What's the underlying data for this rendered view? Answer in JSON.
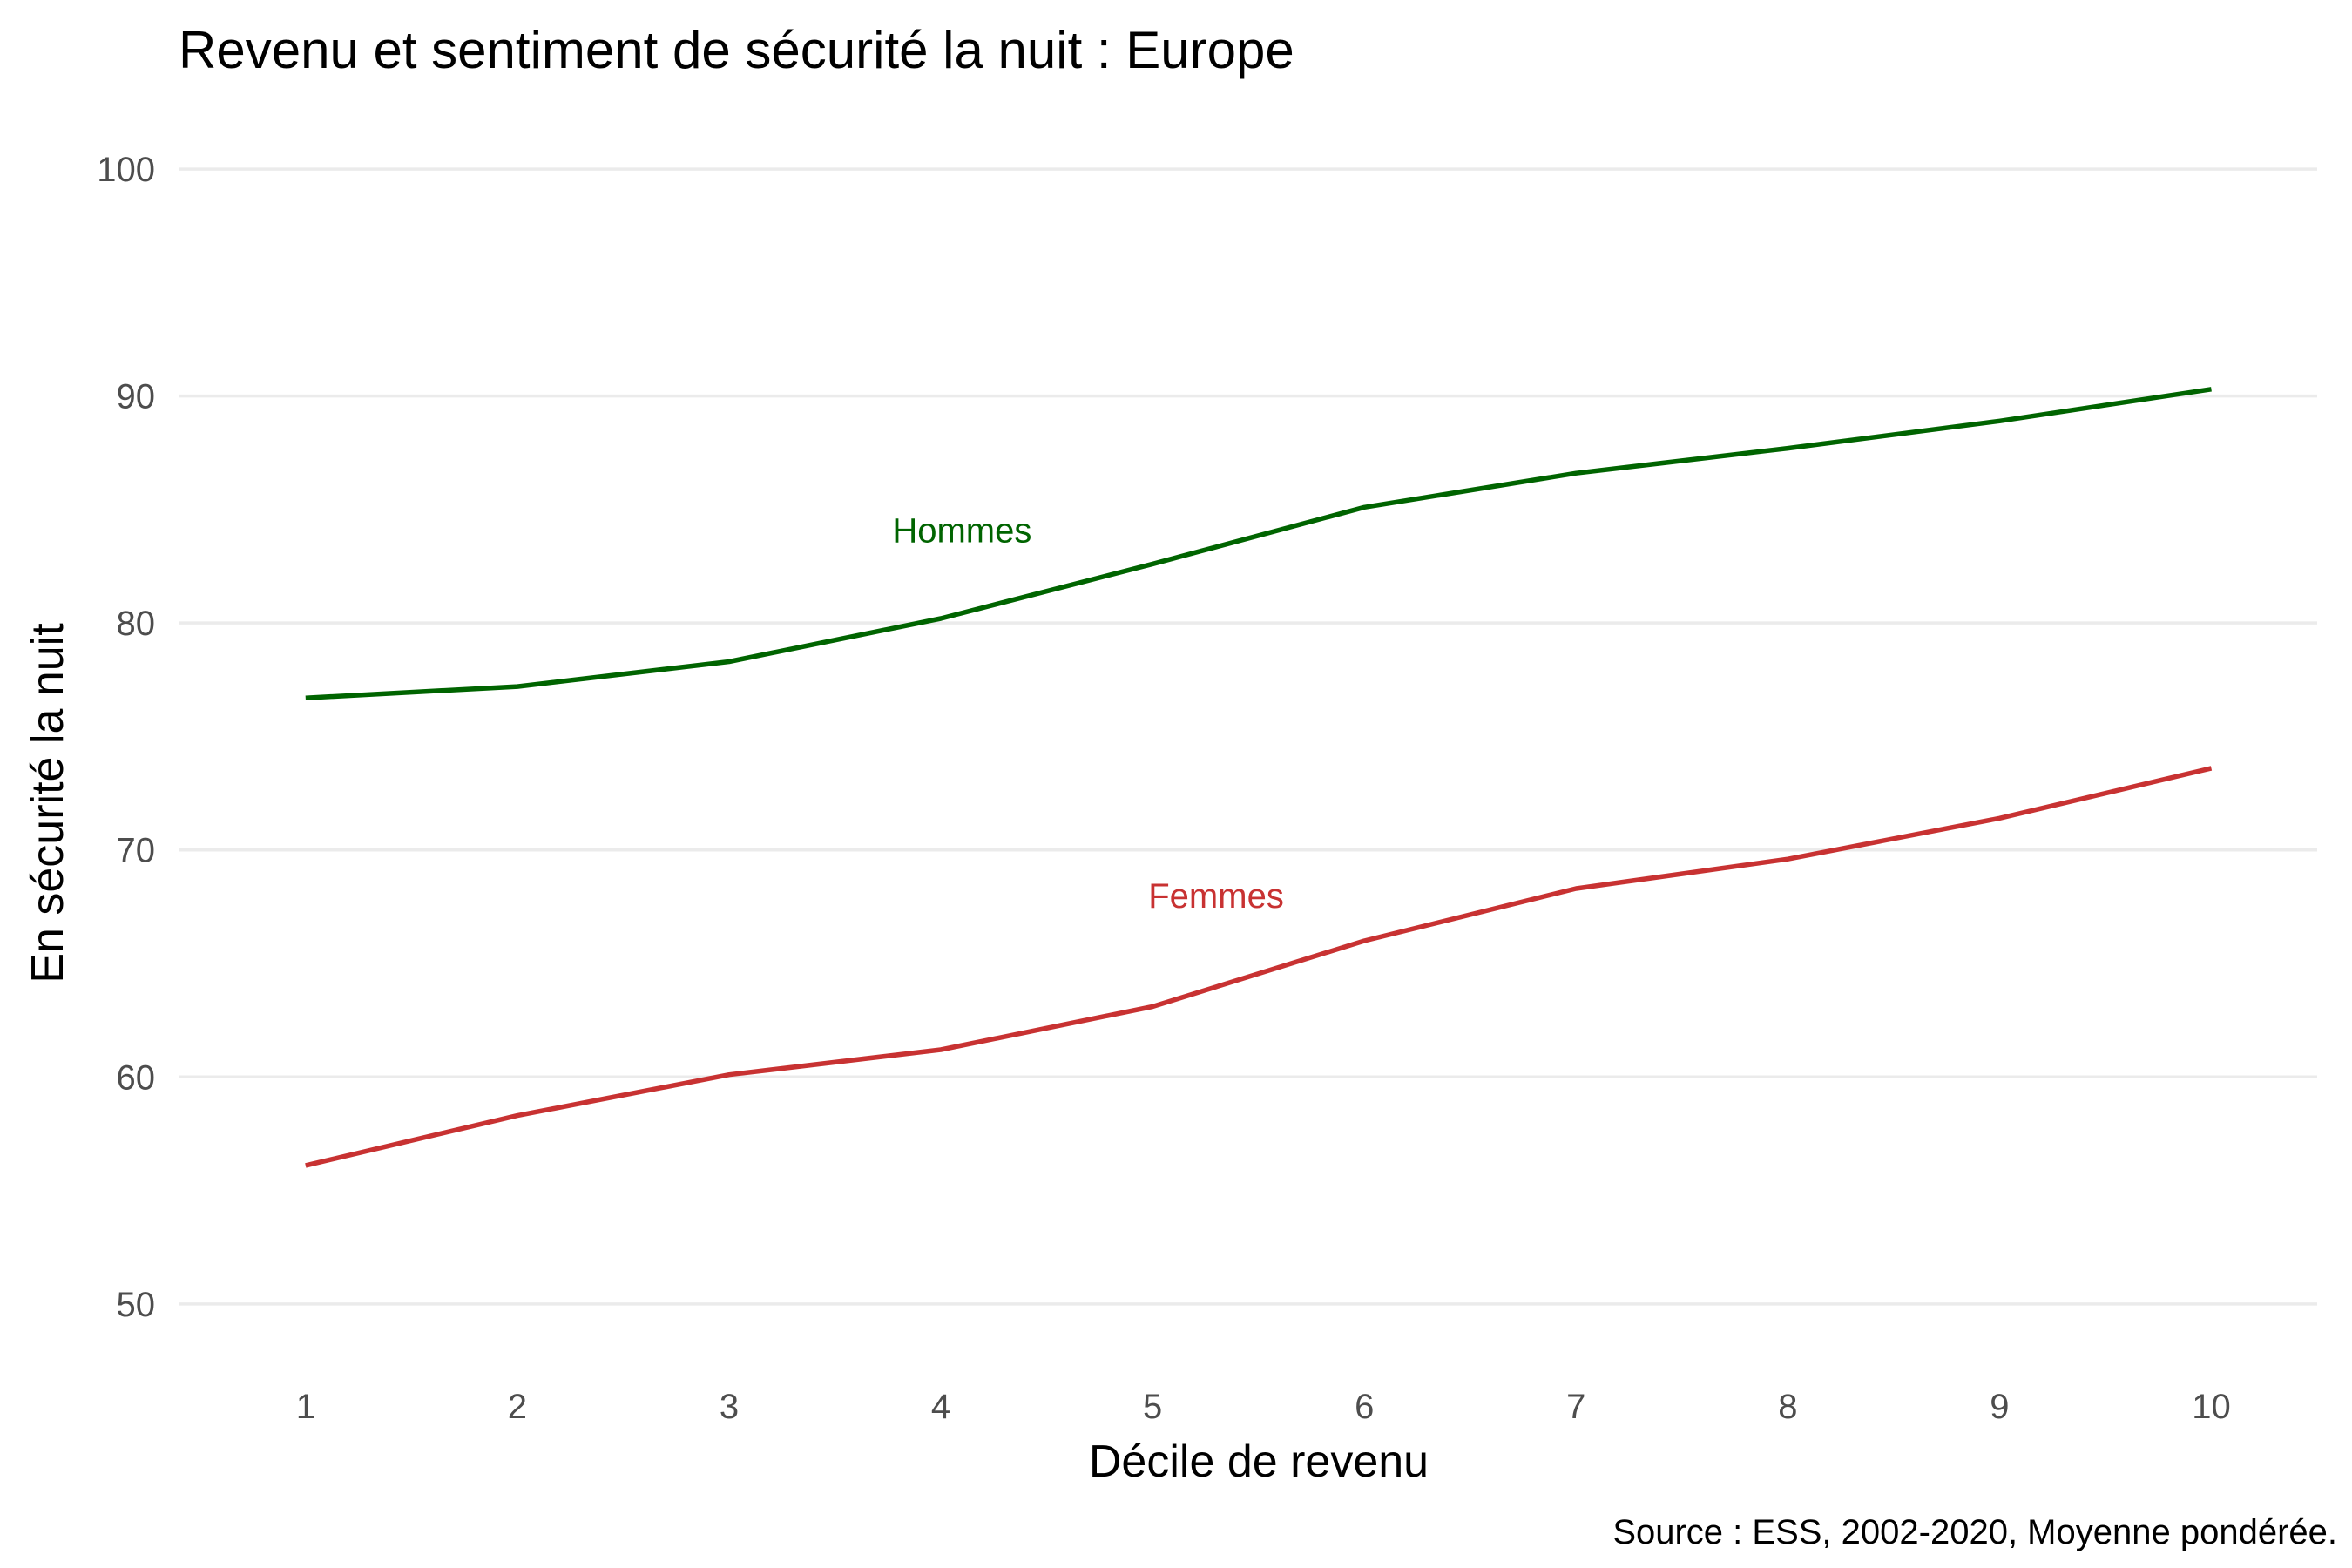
{
  "chart_data": {
    "type": "line",
    "title": "Revenu et sentiment de sécurité la nuit : Europe",
    "xlabel": "Décile de revenu",
    "ylabel": "En sécurité la nuit",
    "caption": "Source : ESS, 2002-2020, Moyenne pondérée.",
    "x": [
      1,
      2,
      3,
      4,
      5,
      6,
      7,
      8,
      9,
      10
    ],
    "xlim": [
      0.4,
      10.5
    ],
    "ylim": [
      47,
      101.5
    ],
    "yticks": [
      50,
      60,
      70,
      80,
      90,
      100
    ],
    "grid": true,
    "legend": "none",
    "series": [
      {
        "name": "Hommes",
        "color": "#006400",
        "values": [
          76.7,
          77.2,
          78.3,
          80.2,
          82.6,
          85.1,
          86.6,
          87.7,
          88.9,
          90.3
        ],
        "label_at": [
          4.1,
          84.1
        ]
      },
      {
        "name": "Femmes",
        "color": "#c83232",
        "values": [
          56.1,
          58.3,
          60.1,
          61.2,
          63.1,
          66.0,
          68.3,
          69.6,
          71.4,
          73.6
        ],
        "label_at": [
          5.3,
          68.0
        ]
      }
    ]
  }
}
